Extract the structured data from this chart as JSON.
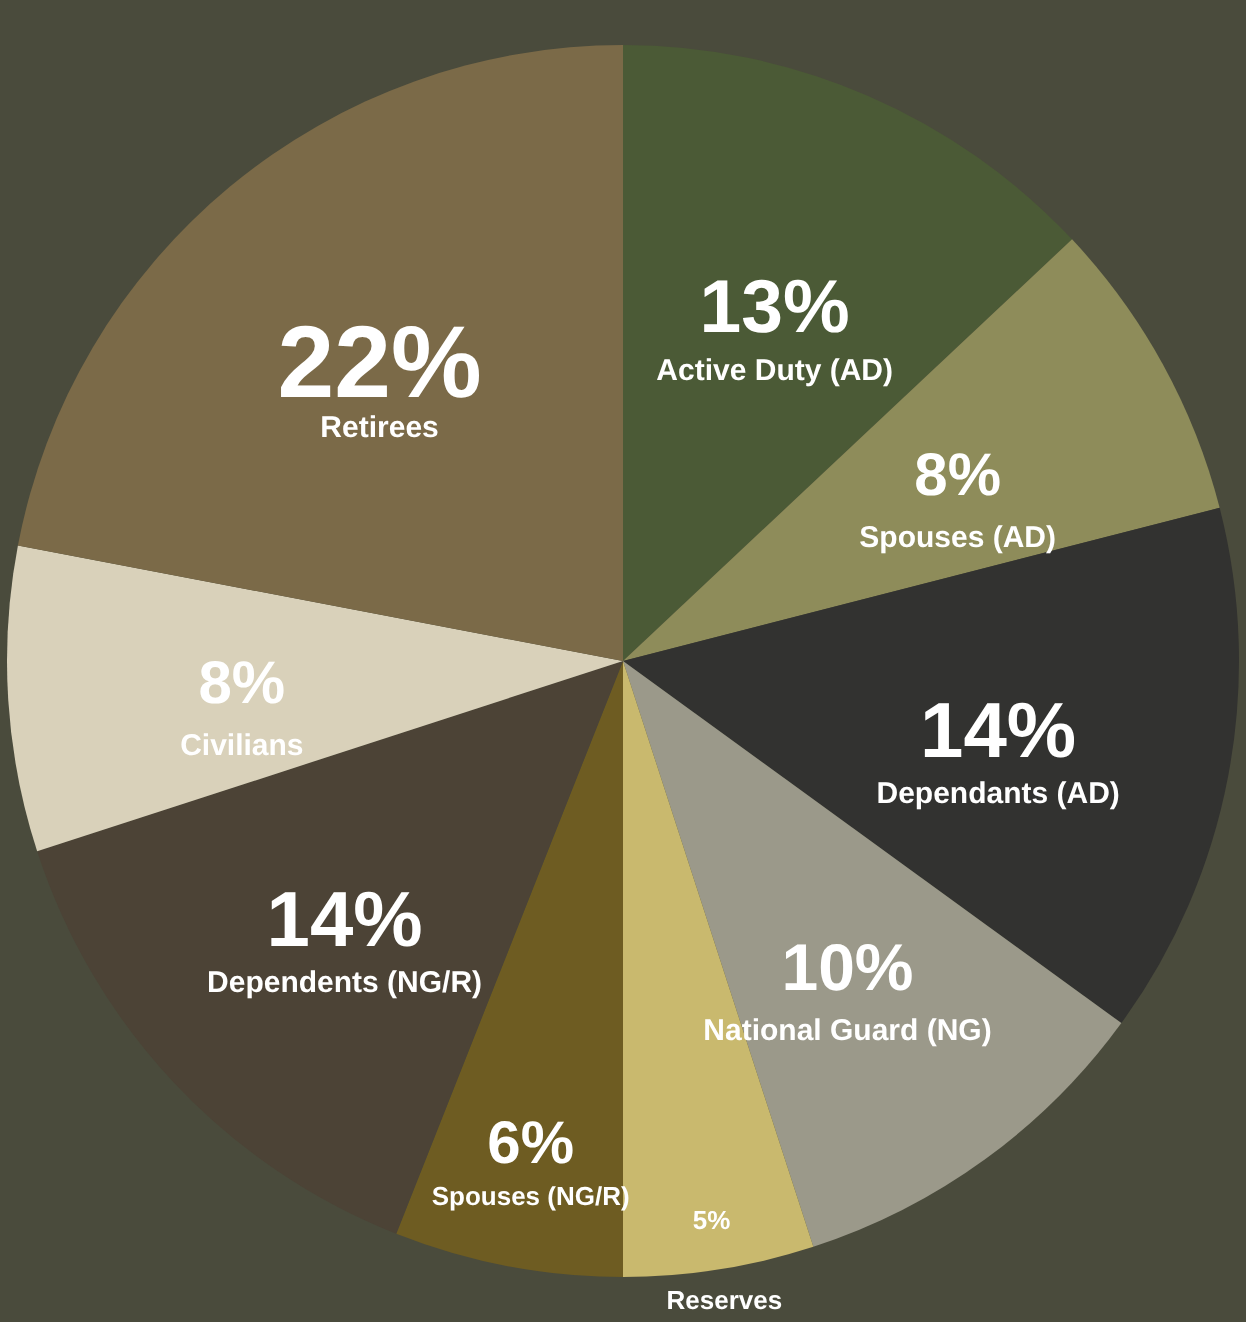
{
  "chart_data": {
    "type": "pie",
    "categories": [
      "Active Duty (AD)",
      "Spouses (AD)",
      "Dependants (AD)",
      "National Guard (NG)",
      "Reserves",
      "Spouses (NG/R)",
      "Dependents (NG/R)",
      "Civilians",
      "Retirees"
    ],
    "values": [
      13,
      8,
      14,
      10,
      5,
      6,
      14,
      8,
      22
    ],
    "value_labels": [
      "13%",
      "8%",
      "14%",
      "10%",
      "5%",
      "6%",
      "14%",
      "8%",
      "22%"
    ],
    "colors": [
      "#4b5a36",
      "#8e8c5a",
      "#323230",
      "#9b998a",
      "#c9b96e",
      "#6e5c22",
      "#4c4336",
      "#d9d1ba",
      "#7b6a48"
    ]
  }
}
